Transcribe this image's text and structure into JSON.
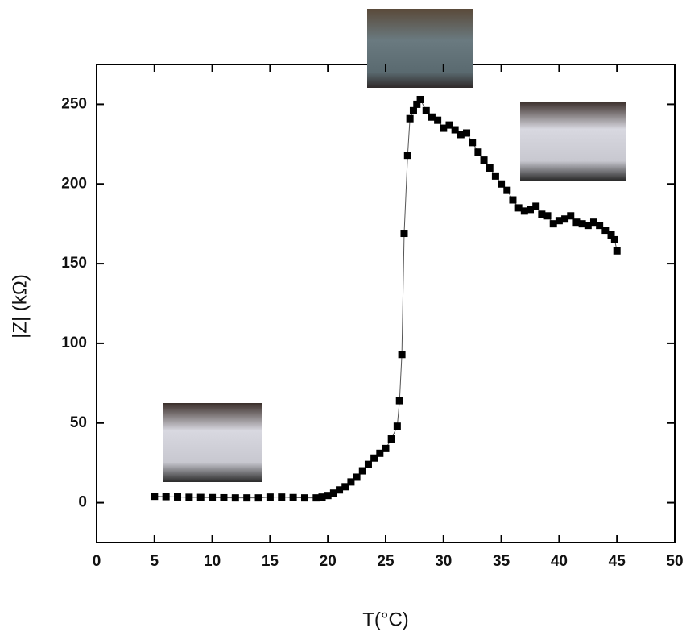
{
  "chart_data": {
    "type": "scatter",
    "xlabel": "T(°C)",
    "ylabel": "|Z| (kΩ)",
    "xlim": [
      0,
      50
    ],
    "ylim": [
      -25,
      275
    ],
    "xticks": [
      0,
      5,
      10,
      15,
      20,
      25,
      30,
      35,
      40,
      45,
      50
    ],
    "yticks": [
      0,
      50,
      100,
      150,
      200,
      250
    ],
    "series": [
      {
        "color": "#000000",
        "x": [
          5,
          6,
          7,
          8,
          9,
          10,
          11,
          12,
          13,
          14,
          15,
          16,
          17,
          18,
          19,
          19.5,
          20,
          20.5,
          21,
          21.5,
          22,
          22.5,
          23,
          23.5,
          24,
          24.5,
          25,
          25.5,
          26,
          26.2,
          26.4,
          26.6,
          26.9,
          27.1,
          27.4,
          27.7,
          28,
          28.5,
          29,
          29.5,
          30,
          30.5,
          31,
          31.5,
          32,
          32.5,
          33,
          33.5,
          34,
          34.5,
          35,
          35.5,
          36,
          36.5,
          37,
          37.5,
          38,
          38.5,
          39,
          39.5,
          40,
          40.5,
          41,
          41.5,
          42,
          42.5,
          43,
          43.5,
          44,
          44.5,
          44.8,
          45
        ],
        "values": [
          4,
          3.8,
          3.6,
          3.4,
          3.3,
          3.2,
          3.1,
          3,
          3,
          3,
          3.5,
          3.5,
          3.2,
          3,
          3,
          3.5,
          4.5,
          6,
          8,
          10,
          13,
          16,
          20,
          24,
          28,
          31,
          34,
          40,
          48,
          64,
          93,
          169,
          218,
          241,
          246,
          250,
          253,
          246,
          242,
          240,
          235,
          237,
          234,
          231,
          232,
          226,
          220,
          215,
          210,
          205,
          200,
          196,
          190,
          185,
          183,
          184,
          186,
          181,
          180,
          175,
          177,
          178,
          180,
          176,
          175,
          174,
          176,
          174,
          171,
          168,
          165,
          158
        ]
      }
    ]
  }
}
